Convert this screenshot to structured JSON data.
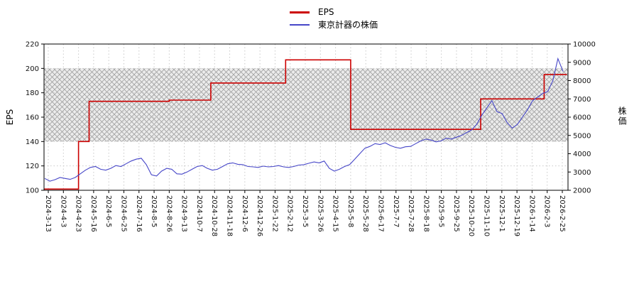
{
  "chart_data": {
    "type": "line",
    "title": "",
    "legend_position": "top-center",
    "grid": "dotted",
    "background": "#ffffff",
    "x_tick_labels": [
      "2024-3-13",
      "2024-4-3",
      "2024-4-23",
      "2024-5-16",
      "2024-6-5",
      "2024-6-25",
      "2024-7-16",
      "2024-8-5",
      "2024-8-26",
      "2024-9-13",
      "2024-10-7",
      "2024-10-28",
      "2024-11-18",
      "2024-12-6",
      "2024-12-26",
      "2025-1-22",
      "2025-2-12",
      "2025-3-5",
      "2025-3-26",
      "2025-4-15",
      "2025-5-8",
      "2025-5-28",
      "2025-6-17",
      "2025-7-7",
      "2025-7-28",
      "2025-8-18",
      "2025-9-5",
      "2025-9-25",
      "2025-10-20",
      "2025-11-10",
      "2025-12-1",
      "2025-12-19",
      "2026-1-14",
      "2026-2-3",
      "2026-2-25"
    ],
    "left_axis": {
      "label": "EPS",
      "min": 100,
      "max": 220,
      "ticks": [
        220,
        200,
        180,
        160,
        140,
        120,
        100
      ]
    },
    "right_axis": {
      "label": "株価",
      "min": 2000,
      "max": 10000,
      "ticks": [
        10000,
        9000,
        8000,
        7000,
        6000,
        5000,
        4000,
        3000,
        2000
      ]
    },
    "band": {
      "from_left_axis": 140,
      "to_left_axis": 200,
      "style": "crosshatch",
      "color": "#ececec",
      "hatch_color": "#9f9f9f"
    },
    "series": [
      {
        "name": "EPS",
        "color": "#cc0000",
        "axis": "left",
        "style": "step",
        "points": [
          [
            -0.3,
            101
          ],
          [
            2.0,
            101
          ],
          [
            2.0,
            140
          ],
          [
            2.7,
            140
          ],
          [
            2.7,
            173
          ],
          [
            8.0,
            173
          ],
          [
            8.0,
            174
          ],
          [
            10.75,
            174
          ],
          [
            10.75,
            188
          ],
          [
            15.7,
            188
          ],
          [
            15.7,
            207
          ],
          [
            20.0,
            207
          ],
          [
            20.0,
            150
          ],
          [
            28.6,
            150
          ],
          [
            28.6,
            175
          ],
          [
            32.8,
            175
          ],
          [
            32.8,
            195
          ],
          [
            34.3,
            195
          ]
        ]
      },
      {
        "name": "東京計器の株価",
        "color": "#4646c8",
        "axis": "right",
        "style": "line",
        "values": [
          2650,
          2500,
          2580,
          2700,
          2650,
          2600,
          2700,
          2900,
          3100,
          3250,
          3300,
          3150,
          3100,
          3200,
          3350,
          3300,
          3450,
          3600,
          3700,
          3750,
          3400,
          2850,
          2780,
          3050,
          3200,
          3150,
          2900,
          2880,
          3000,
          3150,
          3300,
          3350,
          3200,
          3100,
          3150,
          3300,
          3450,
          3500,
          3420,
          3400,
          3300,
          3280,
          3250,
          3320,
          3280,
          3300,
          3350,
          3280,
          3250,
          3300,
          3380,
          3400,
          3480,
          3550,
          3500,
          3600,
          3200,
          3050,
          3150,
          3300,
          3400,
          3700,
          4000,
          4300,
          4400,
          4550,
          4500,
          4600,
          4450,
          4350,
          4300,
          4380,
          4400,
          4550,
          4700,
          4800,
          4750,
          4650,
          4700,
          4850,
          4800,
          4900,
          5000,
          5150,
          5300,
          5600,
          6100,
          6500,
          6900,
          6300,
          6200,
          5700,
          5400,
          5600,
          6000,
          6400,
          6900,
          7100,
          7300,
          7400,
          8000,
          9200,
          8500
        ]
      }
    ]
  }
}
